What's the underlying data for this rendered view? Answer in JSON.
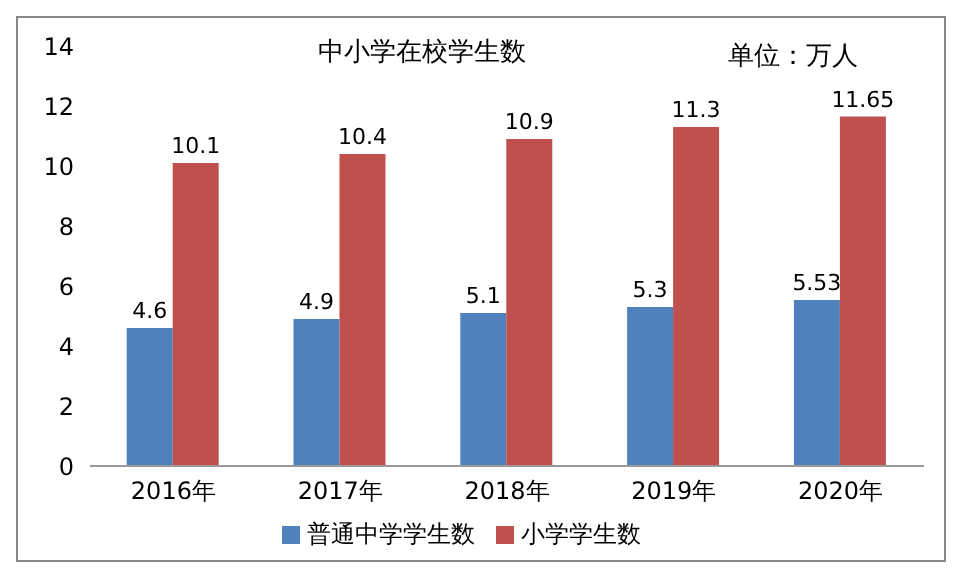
{
  "chart_data": {
    "type": "bar",
    "title": "中小学在校学生数",
    "annotations": [
      "单位：万人"
    ],
    "categories": [
      "2016年",
      "2017年",
      "2018年",
      "2019年",
      "2020年"
    ],
    "series": [
      {
        "name": "普通中学学生数",
        "color": "#4f81bd",
        "values": [
          4.6,
          4.9,
          5.1,
          5.3,
          5.53
        ]
      },
      {
        "name": "小学学生数",
        "color": "#c0504d",
        "values": [
          10.1,
          10.4,
          10.9,
          11.3,
          11.65
        ]
      }
    ],
    "ylim": [
      0,
      14
    ],
    "yticks": [
      0,
      2,
      4,
      6,
      8,
      10,
      12,
      14
    ],
    "grid": false,
    "legend": "bottom",
    "data_labels": true
  }
}
